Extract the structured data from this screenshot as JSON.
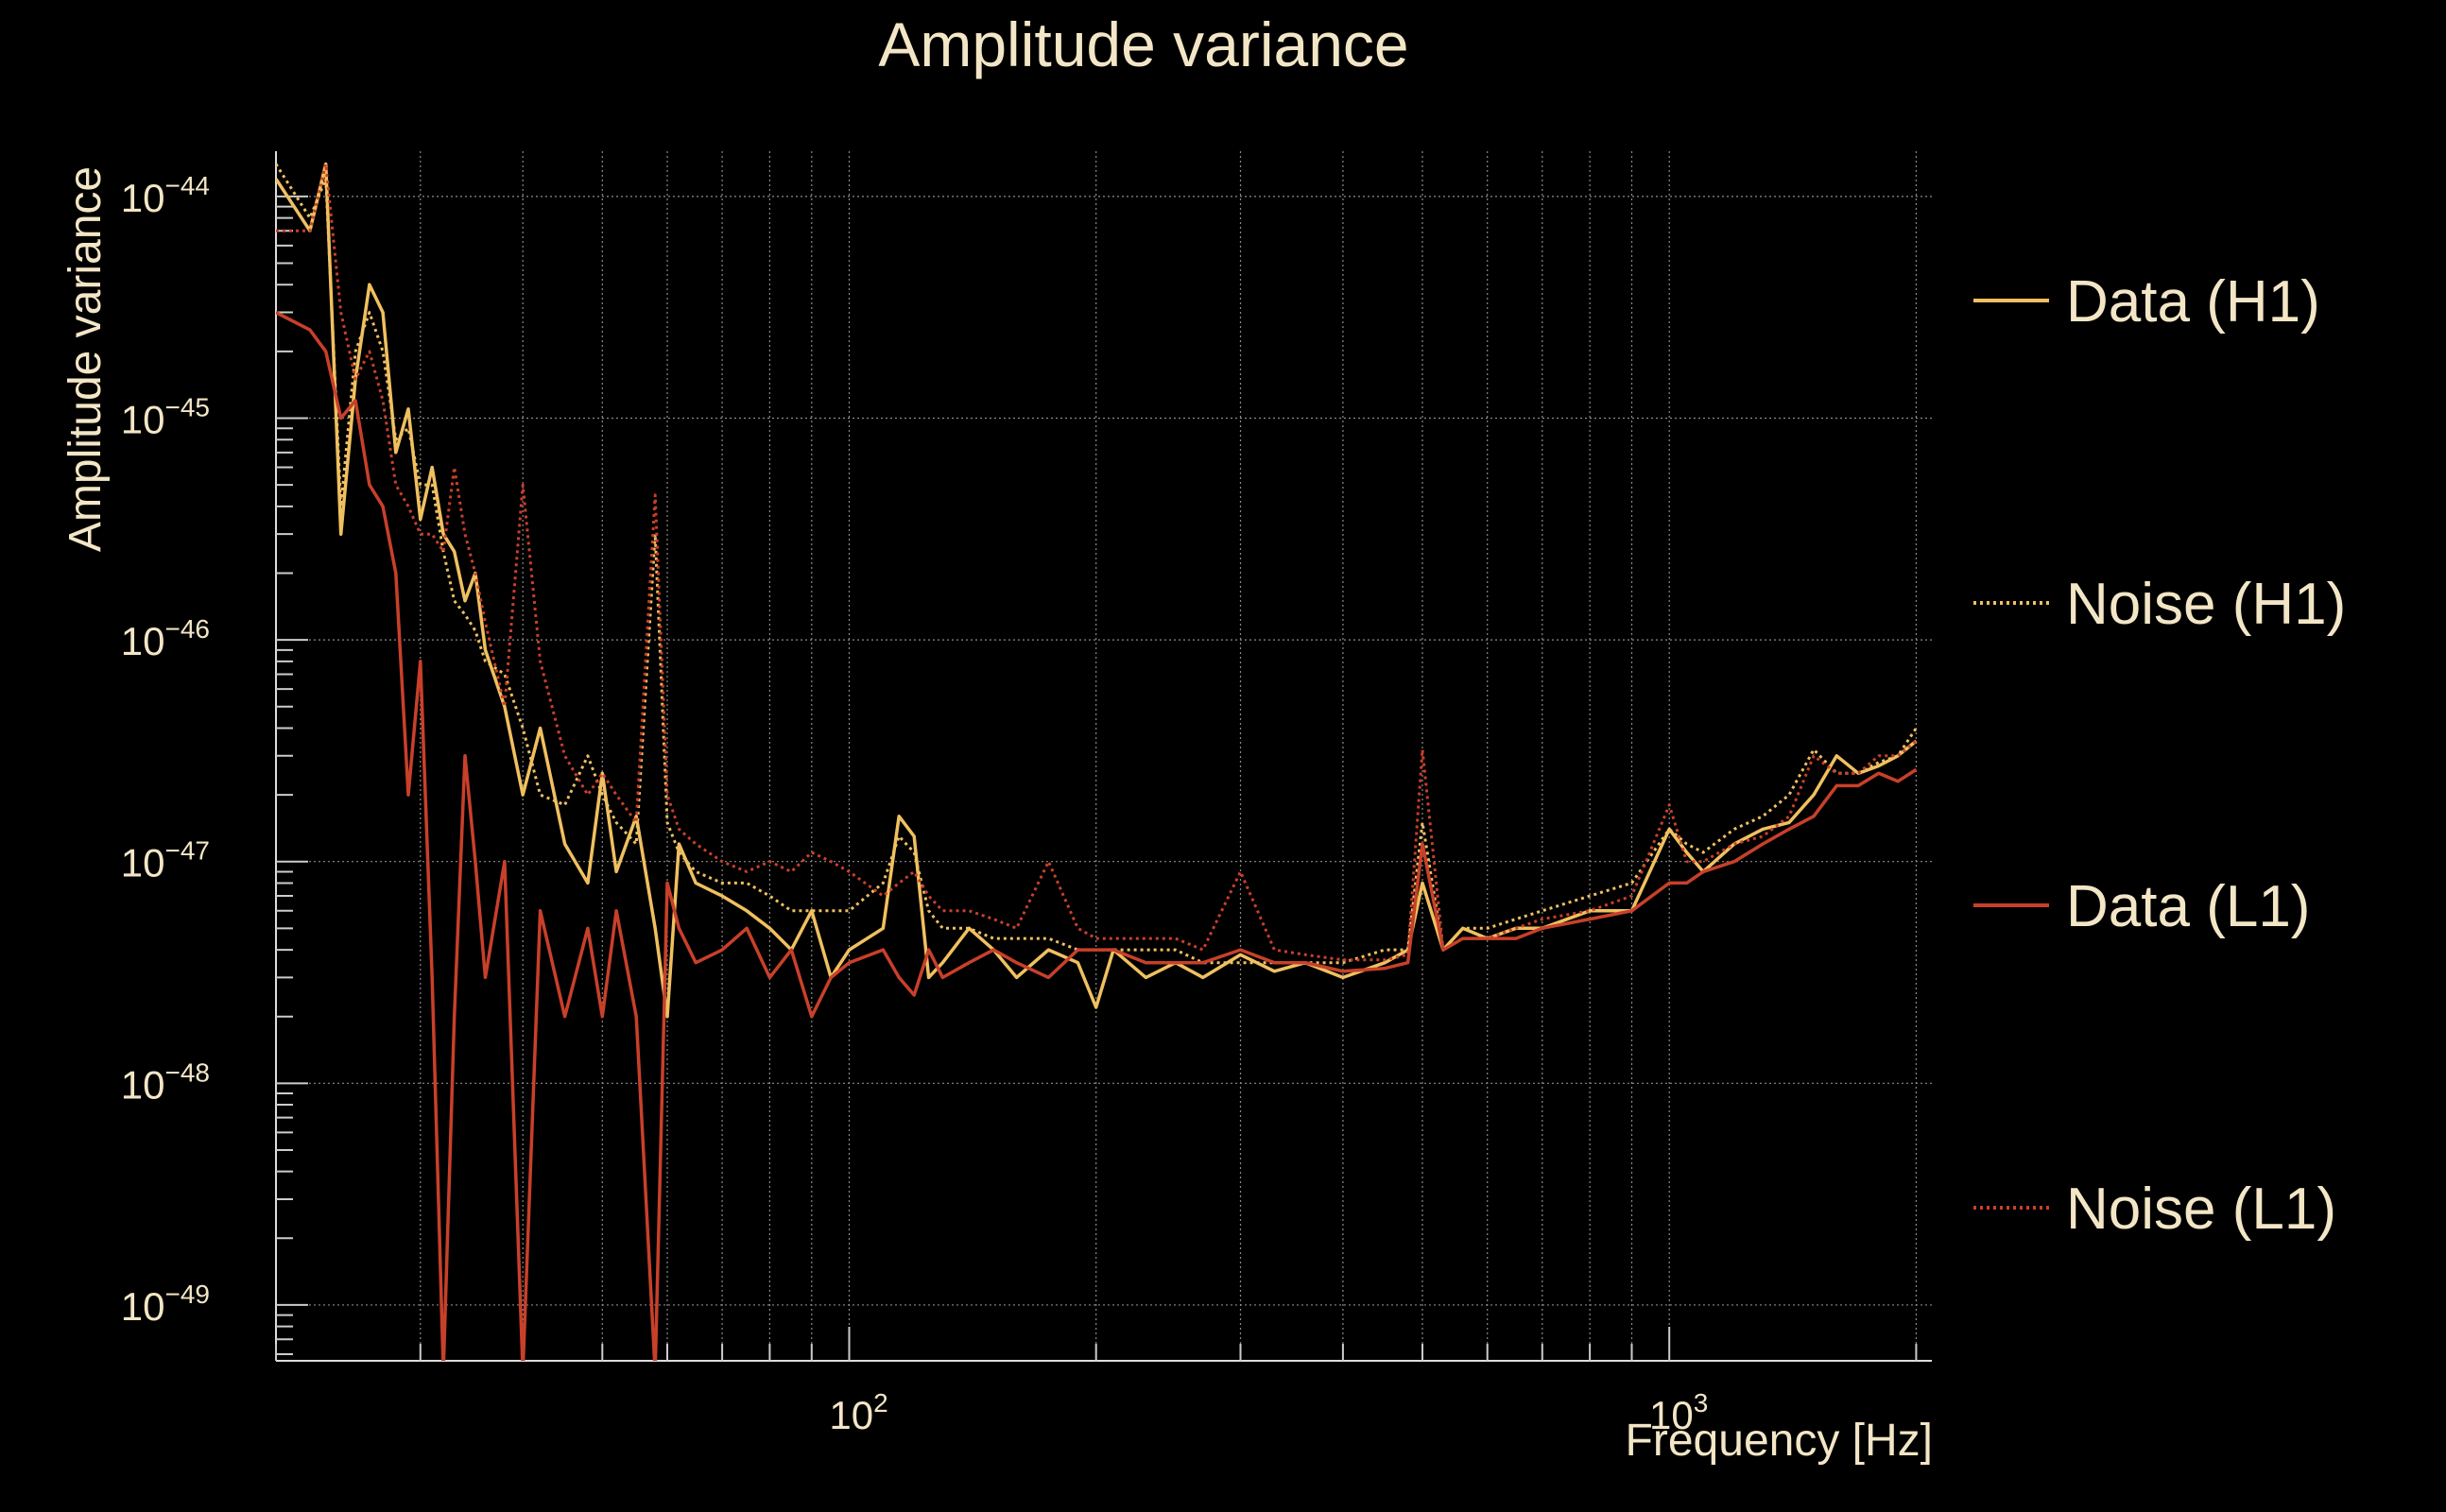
{
  "chart_data": {
    "type": "line",
    "title": "Amplitude variance",
    "xlabel": "Frequency [Hz]",
    "ylabel": "Amplitude variance",
    "xscale": "log",
    "yscale": "log",
    "xlim": [
      20,
      2090
    ],
    "ylim": [
      5.6e-50,
      1.6e-44
    ],
    "grid": true,
    "legend_position": "right",
    "x_ticks": [
      {
        "base": "10",
        "exp": "2"
      },
      {
        "base": "10",
        "exp": "3"
      }
    ],
    "y_ticks": [
      {
        "base": "10",
        "exp": "−44",
        "value": 1e-44
      },
      {
        "base": "10",
        "exp": "−45",
        "value": 1e-45
      },
      {
        "base": "10",
        "exp": "−46",
        "value": 1e-46
      },
      {
        "base": "10",
        "exp": "−47",
        "value": 1e-47
      },
      {
        "base": "10",
        "exp": "−48",
        "value": 1e-48
      },
      {
        "base": "10",
        "exp": "−49",
        "value": 1e-49
      }
    ],
    "series": [
      {
        "name": "Data (H1)",
        "color": "#f0c060",
        "dash": "solid",
        "x": [
          20,
          22,
          23,
          24,
          25,
          26,
          27,
          28,
          29,
          30,
          31,
          32,
          33,
          34,
          35,
          36,
          38,
          40,
          42,
          45,
          48,
          50,
          52,
          55,
          58,
          60,
          62,
          65,
          70,
          75,
          80,
          85,
          90,
          95,
          100,
          110,
          115,
          120,
          125,
          130,
          140,
          150,
          160,
          175,
          190,
          200,
          210,
          230,
          250,
          270,
          300,
          330,
          360,
          400,
          450,
          480,
          500,
          530,
          560,
          600,
          650,
          700,
          800,
          900,
          1000,
          1050,
          1100,
          1200,
          1300,
          1400,
          1500,
          1600,
          1700,
          1800,
          1900,
          2000
        ],
        "y": [
          1.2e-44,
          7e-45,
          1.4e-44,
          3e-46,
          1.5e-45,
          4e-45,
          3e-45,
          7e-46,
          1.1e-45,
          3.5e-46,
          6e-46,
          3e-46,
          2.5e-46,
          1.5e-46,
          2e-46,
          9e-47,
          5e-47,
          2e-47,
          4e-47,
          1.2e-47,
          8e-48,
          2.5e-47,
          9e-48,
          1.6e-47,
          5e-48,
          2e-48,
          1.2e-47,
          8e-48,
          7e-48,
          6e-48,
          5e-48,
          4e-48,
          6e-48,
          3e-48,
          4e-48,
          5e-48,
          1.6e-47,
          1.3e-47,
          3e-48,
          3.5e-48,
          5e-48,
          4e-48,
          3e-48,
          4e-48,
          3.5e-48,
          2.2e-48,
          4e-48,
          3e-48,
          3.5e-48,
          3e-48,
          3.8e-48,
          3.2e-48,
          3.5e-48,
          3e-48,
          3.5e-48,
          4e-48,
          8e-48,
          4e-48,
          5e-48,
          4.5e-48,
          5e-48,
          5e-48,
          6e-48,
          6e-48,
          1.4e-47,
          1.1e-47,
          9e-48,
          1.2e-47,
          1.4e-47,
          1.5e-47,
          2e-47,
          3e-47,
          2.5e-47,
          2.7e-47,
          3e-47,
          3.5e-47
        ]
      },
      {
        "name": "Noise (H1)",
        "color": "#f0c060",
        "dash": "dotted",
        "x": [
          20,
          22,
          23,
          24,
          25,
          26,
          27,
          28,
          29,
          30,
          31,
          32,
          33,
          34,
          35,
          36,
          38,
          40,
          42,
          45,
          48,
          50,
          52,
          55,
          58,
          60,
          62,
          65,
          70,
          75,
          80,
          85,
          90,
          95,
          100,
          110,
          115,
          120,
          125,
          130,
          140,
          150,
          160,
          175,
          190,
          200,
          210,
          230,
          250,
          270,
          300,
          330,
          360,
          400,
          450,
          480,
          500,
          530,
          560,
          600,
          650,
          700,
          800,
          900,
          1000,
          1050,
          1100,
          1200,
          1300,
          1400,
          1500,
          1600,
          1700,
          1800,
          1900,
          2000
        ],
        "y": [
          1.4e-44,
          8e-45,
          1.2e-44,
          4e-46,
          2e-45,
          3e-45,
          2e-45,
          8e-46,
          9e-46,
          5e-46,
          5e-46,
          2.5e-46,
          1.5e-46,
          1.3e-46,
          1.1e-46,
          8e-47,
          7e-47,
          4e-47,
          2e-47,
          1.8e-47,
          3e-47,
          2e-47,
          1.5e-47,
          1.2e-47,
          3e-46,
          1.5e-47,
          1.1e-47,
          9e-48,
          8e-48,
          8e-48,
          7e-48,
          6e-48,
          6e-48,
          6e-48,
          6e-48,
          8e-48,
          1.3e-47,
          1.1e-47,
          6e-48,
          5e-48,
          5e-48,
          4.5e-48,
          4.5e-48,
          4.5e-48,
          4e-48,
          4e-48,
          4e-48,
          4e-48,
          4e-48,
          3.5e-48,
          3.5e-48,
          3.5e-48,
          3.5e-48,
          3.5e-48,
          4e-48,
          4e-48,
          1.5e-47,
          4e-48,
          5e-48,
          5e-48,
          5.5e-48,
          6e-48,
          7e-48,
          8e-48,
          1.4e-47,
          1.2e-47,
          1.1e-47,
          1.4e-47,
          1.6e-47,
          2e-47,
          3.2e-47,
          2.5e-47,
          2.5e-47,
          2.8e-47,
          3e-47,
          4e-47
        ]
      },
      {
        "name": "Data (L1)",
        "color": "#c8402a",
        "dash": "solid",
        "x": [
          20,
          22,
          23,
          24,
          25,
          26,
          27,
          28,
          29,
          30,
          31,
          32,
          33,
          34,
          35,
          36,
          38,
          40,
          42,
          45,
          48,
          50,
          52,
          55,
          58,
          60,
          62,
          65,
          70,
          75,
          80,
          85,
          90,
          95,
          100,
          110,
          115,
          120,
          125,
          130,
          140,
          150,
          160,
          175,
          190,
          200,
          210,
          230,
          250,
          270,
          300,
          330,
          360,
          400,
          450,
          480,
          500,
          530,
          560,
          600,
          650,
          700,
          800,
          900,
          1000,
          1050,
          1100,
          1200,
          1300,
          1400,
          1500,
          1600,
          1700,
          1800,
          1900,
          2000
        ],
        "y": [
          3e-45,
          2.5e-45,
          2e-45,
          1e-45,
          1.2e-45,
          5e-46,
          4e-46,
          2e-46,
          2e-47,
          8e-47,
          3e-48,
          5e-50,
          2e-48,
          3e-47,
          1e-47,
          3e-48,
          1e-47,
          5e-50,
          6e-48,
          2e-48,
          5e-48,
          2e-48,
          6e-48,
          2e-48,
          5e-50,
          8e-48,
          5e-48,
          3.5e-48,
          4e-48,
          5e-48,
          3e-48,
          4e-48,
          2e-48,
          3e-48,
          3.5e-48,
          4e-48,
          3e-48,
          2.5e-48,
          4e-48,
          3e-48,
          3.5e-48,
          4e-48,
          3.5e-48,
          3e-48,
          4e-48,
          4e-48,
          4e-48,
          3.5e-48,
          3.5e-48,
          3.5e-48,
          4e-48,
          3.5e-48,
          3.5e-48,
          3.2e-48,
          3.3e-48,
          3.5e-48,
          1.2e-47,
          4e-48,
          4.5e-48,
          4.5e-48,
          4.5e-48,
          5e-48,
          5.5e-48,
          6e-48,
          8e-48,
          8e-48,
          9e-48,
          1e-47,
          1.2e-47,
          1.4e-47,
          1.6e-47,
          2.2e-47,
          2.2e-47,
          2.5e-47,
          2.3e-47,
          2.6e-47
        ]
      },
      {
        "name": "Noise (L1)",
        "color": "#c8402a",
        "dash": "dotted",
        "x": [
          20,
          22,
          23,
          24,
          25,
          26,
          27,
          28,
          29,
          30,
          31,
          32,
          33,
          34,
          35,
          36,
          38,
          40,
          42,
          45,
          48,
          50,
          52,
          55,
          58,
          60,
          62,
          65,
          70,
          75,
          80,
          85,
          90,
          95,
          100,
          110,
          115,
          120,
          125,
          130,
          140,
          150,
          160,
          175,
          190,
          200,
          210,
          230,
          250,
          270,
          300,
          330,
          360,
          400,
          450,
          480,
          500,
          530,
          560,
          600,
          650,
          700,
          800,
          900,
          1000,
          1050,
          1100,
          1200,
          1300,
          1400,
          1500,
          1600,
          1700,
          1800,
          1900,
          2000
        ],
        "y": [
          7e-45,
          7e-45,
          1.4e-44,
          3e-45,
          1.5e-45,
          2e-45,
          1.2e-45,
          5e-46,
          4e-46,
          3e-46,
          3e-46,
          2.5e-46,
          6e-46,
          3e-46,
          2e-46,
          1.2e-46,
          5e-47,
          5e-46,
          8e-47,
          3e-47,
          2e-47,
          2.5e-47,
          2e-47,
          1.5e-47,
          4.5e-46,
          2e-47,
          1.4e-47,
          1.2e-47,
          1e-47,
          9e-48,
          1e-47,
          9e-48,
          1.1e-47,
          1e-47,
          9e-48,
          7e-48,
          8e-48,
          9e-48,
          7e-48,
          6e-48,
          6e-48,
          5.5e-48,
          5e-48,
          1e-47,
          5e-48,
          4.5e-48,
          4.5e-48,
          4.5e-48,
          4.5e-48,
          4e-48,
          9e-48,
          4e-48,
          3.8e-48,
          3.6e-48,
          3.6e-48,
          3.8e-48,
          3.2e-47,
          4e-48,
          4.5e-48,
          4.5e-48,
          5e-48,
          5.5e-48,
          6e-48,
          7e-48,
          1.8e-47,
          1e-47,
          1e-47,
          1.2e-47,
          1.3e-47,
          1.6e-47,
          3e-47,
          2.5e-47,
          2.5e-47,
          3e-47,
          3e-47,
          3.5e-47
        ]
      }
    ]
  }
}
